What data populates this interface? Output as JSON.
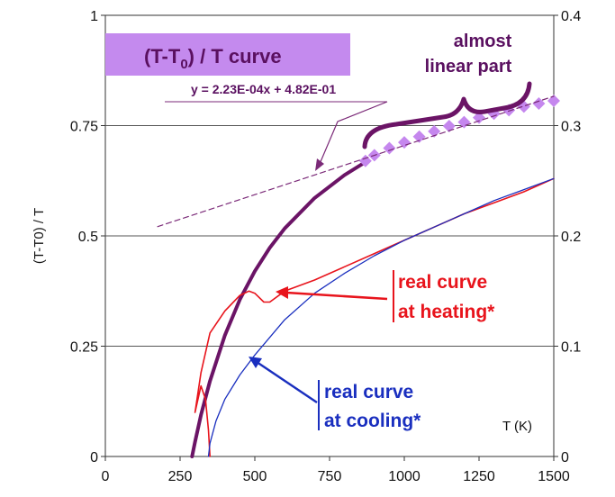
{
  "chart_data": {
    "type": "line",
    "title": "",
    "xlabel": "T (K)",
    "ylabel": "(T-T0) / T",
    "xlim": [
      0,
      1500
    ],
    "ylim": [
      0,
      1
    ],
    "y2lim": [
      0,
      0.4
    ],
    "x_ticks": [
      "0",
      "250",
      "500",
      "750",
      "1000",
      "1250",
      "1500"
    ],
    "y_ticks": [
      "0",
      "0.25",
      "0.5",
      "0.75",
      "1"
    ],
    "y2_ticks": [
      "0",
      "0.1",
      "0.2",
      "0.3",
      "0.4"
    ],
    "grid": "horizontal",
    "colors": {
      "theory": "#6b1466",
      "heating": "#e8141c",
      "cooling": "#1a2fbf",
      "fit": "#7b2a78",
      "highlight": "#c587ee"
    },
    "series": [
      {
        "name": "(T-T0) / T curve",
        "color": "#6b1466",
        "x": [
          290,
          300,
          320,
          350,
          400,
          450,
          500,
          550,
          600,
          700,
          800,
          860
        ],
        "y": [
          0.0,
          0.033,
          0.094,
          0.171,
          0.275,
          0.356,
          0.42,
          0.473,
          0.517,
          0.586,
          0.638,
          0.663
        ]
      },
      {
        "name": "",
        "color": "#c587ee",
        "x": [
          870,
          900,
          950,
          1000,
          1050,
          1100,
          1150,
          1200,
          1250,
          1300,
          1350,
          1400,
          1450,
          1500
        ],
        "y": [
          0.67,
          0.683,
          0.699,
          0.712,
          0.725,
          0.737,
          0.749,
          0.758,
          0.768,
          0.777,
          0.785,
          0.793,
          0.8,
          0.806
        ]
      },
      {
        "name": "real curve at heating*",
        "color": "#e8141c",
        "x": [
          350,
          345,
          335,
          320,
          300,
          320,
          350,
          400,
          450,
          480,
          500,
          530,
          550,
          600,
          700,
          800,
          900,
          1000,
          1100,
          1200,
          1300,
          1400,
          1500
        ],
        "y": [
          0.0,
          0.06,
          0.13,
          0.16,
          0.1,
          0.19,
          0.28,
          0.33,
          0.365,
          0.375,
          0.37,
          0.35,
          0.35,
          0.375,
          0.4,
          0.43,
          0.46,
          0.49,
          0.52,
          0.55,
          0.575,
          0.6,
          0.63
        ]
      },
      {
        "name": "real curve at cooling*",
        "color": "#1a2fbf",
        "x": [
          345,
          350,
          370,
          400,
          450,
          500,
          600,
          700,
          800,
          900,
          1000,
          1100,
          1200,
          1300,
          1400,
          1500
        ],
        "y": [
          0.0,
          0.03,
          0.08,
          0.13,
          0.185,
          0.23,
          0.31,
          0.37,
          0.415,
          0.455,
          0.49,
          0.52,
          0.55,
          0.58,
          0.605,
          0.63
        ]
      },
      {
        "name": "y = 2.23E-04x + 4.82E-01",
        "color": "#7b2a78",
        "dashed": true,
        "x": [
          175,
          1500
        ],
        "y": [
          0.521,
          0.8165
        ]
      }
    ],
    "annotations": {
      "box_label": "(T-T",
      "box_label_sub": "0",
      "box_label_rest": ") / T curve",
      "equation": "y = 2.23E-04x + 4.82E-01",
      "linear_line1": "almost",
      "linear_line2": "linear part",
      "heating_line1": "real curve",
      "heating_line2": "at heating*",
      "cooling_line1": "real curve",
      "cooling_line2": "at cooling*",
      "xlabel_inside": "T (K)"
    }
  }
}
